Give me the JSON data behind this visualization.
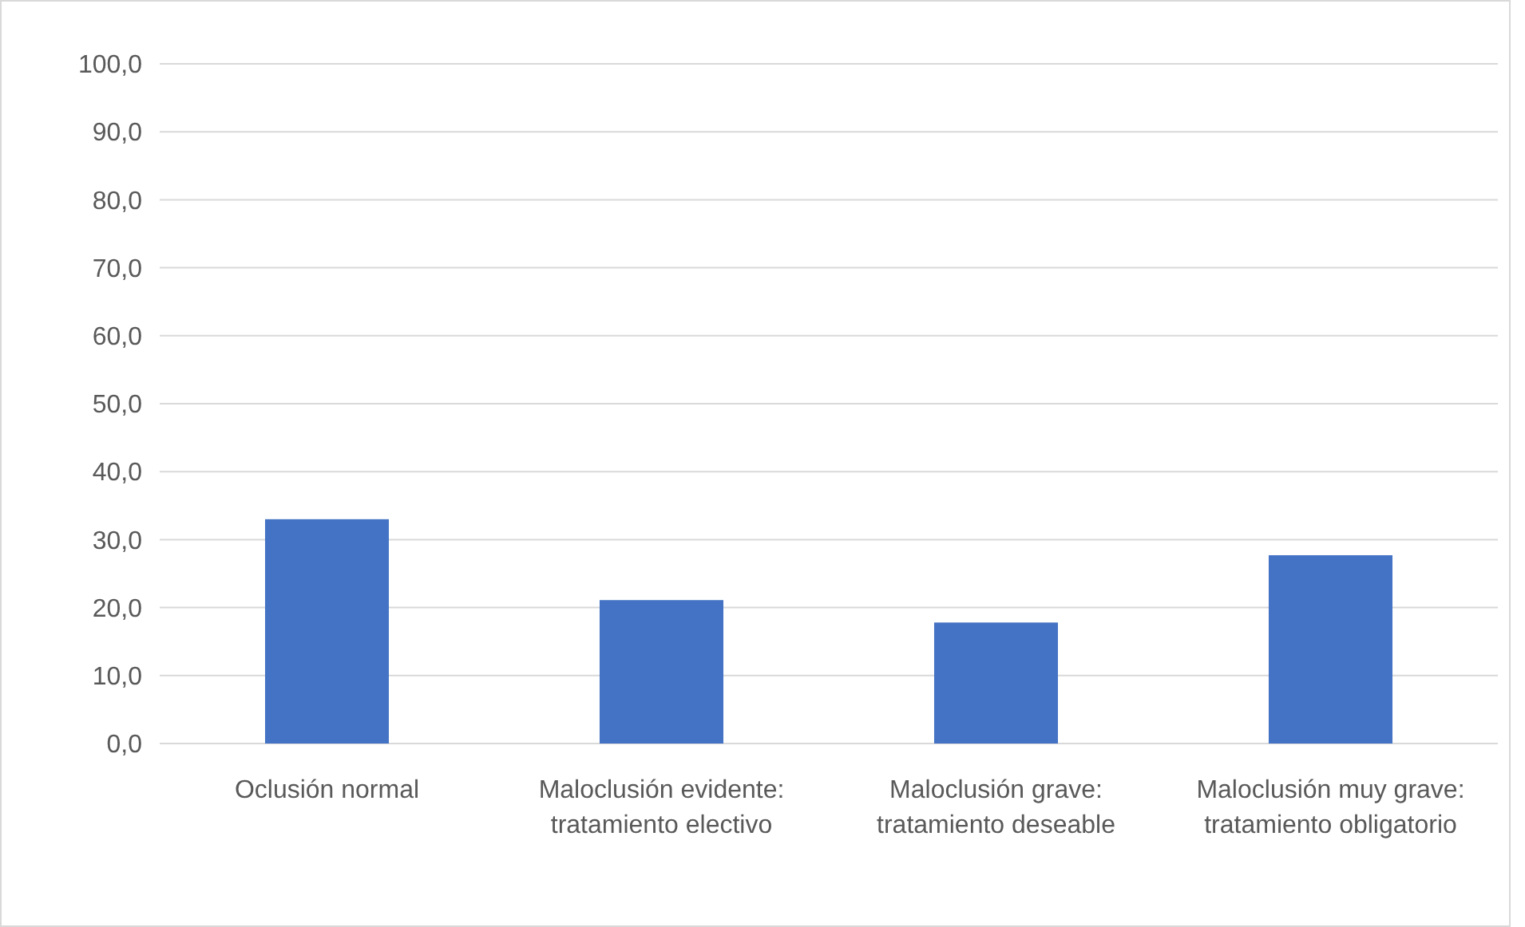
{
  "chart_data": {
    "type": "bar",
    "categories": [
      "Oclusión normal",
      "Maloclusión evidente: tratamiento electivo",
      "Maloclusión grave: tratamiento deseable",
      "Maloclusión muy grave: tratamiento obligatorio"
    ],
    "values": [
      33.0,
      21.1,
      17.8,
      27.7
    ],
    "color": "#4472c4",
    "ylim": [
      0,
      100
    ],
    "yticks": [
      {
        "value": 0,
        "label": "0,0"
      },
      {
        "value": 10,
        "label": "10,0"
      },
      {
        "value": 20,
        "label": "20,0"
      },
      {
        "value": 30,
        "label": "30,0"
      },
      {
        "value": 40,
        "label": "40,0"
      },
      {
        "value": 50,
        "label": "50,0"
      },
      {
        "value": 60,
        "label": "60,0"
      },
      {
        "value": 70,
        "label": "70,0"
      },
      {
        "value": 80,
        "label": "80,0"
      },
      {
        "value": 90,
        "label": "90,0"
      },
      {
        "value": 100,
        "label": "100,0"
      }
    ],
    "grid": "y"
  }
}
